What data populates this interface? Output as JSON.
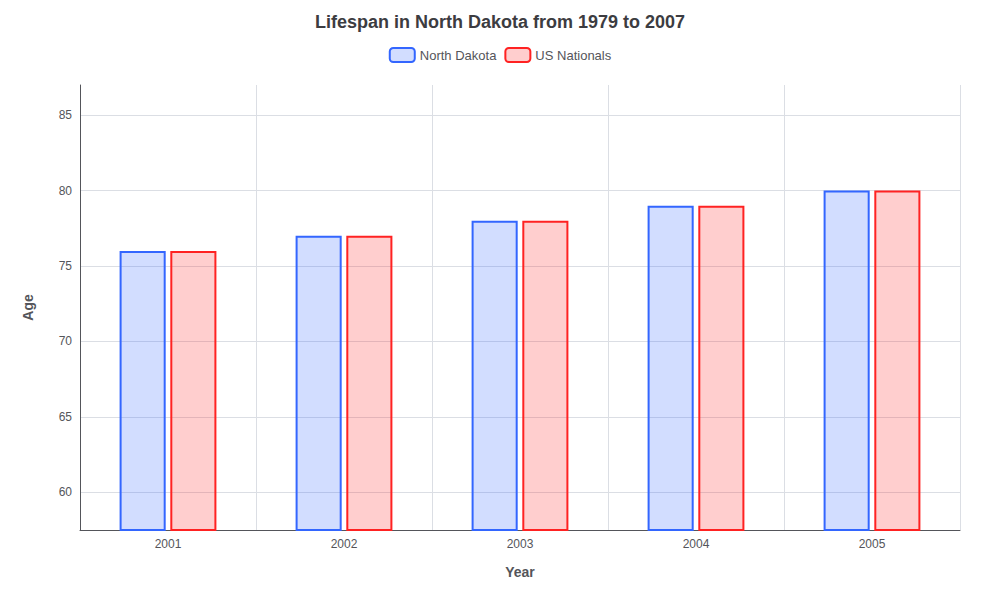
{
  "chart_data": {
    "type": "bar",
    "title": "Lifespan in North Dakota from 1979 to 2007",
    "xlabel": "Year",
    "ylabel": "Age",
    "categories": [
      "2001",
      "2002",
      "2003",
      "2004",
      "2005"
    ],
    "series": [
      {
        "name": "North Dakota",
        "color": "#3366ff",
        "values": [
          76,
          77,
          78,
          79,
          80
        ]
      },
      {
        "name": "US Nationals",
        "color": "#ff2222",
        "values": [
          76,
          77,
          78,
          79,
          80
        ]
      }
    ],
    "ylim": [
      57.5,
      87
    ],
    "yticks": [
      60,
      65,
      70,
      75,
      80,
      85
    ],
    "grid": true,
    "legend": "top"
  }
}
